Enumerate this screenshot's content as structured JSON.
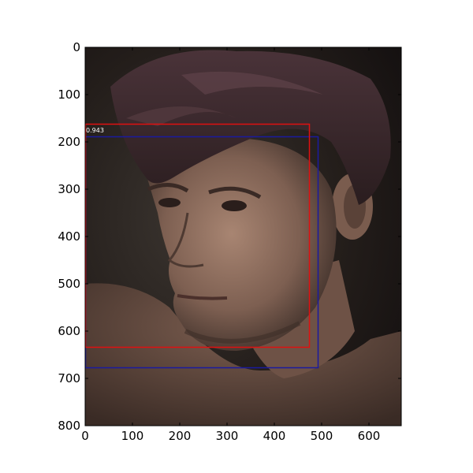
{
  "plot": {
    "x_ticks": [
      "0",
      "100",
      "200",
      "300",
      "400",
      "500",
      "600"
    ],
    "y_ticks": [
      "0",
      "100",
      "200",
      "300",
      "400",
      "500",
      "600",
      "700",
      "800"
    ]
  },
  "image": {
    "description_icon": "portrait-photo",
    "colors": {
      "background_dark": "#1f1a17",
      "hair": "#3a2a2e",
      "skin": "#8b6c5c",
      "skin_light": "#a88572",
      "shadow": "#2a2220"
    }
  },
  "detections": [
    {
      "label": "0.943",
      "color": "#e01010"
    },
    {
      "label": "",
      "color": "#1a1aa0"
    }
  ],
  "colors": {
    "axis": "#000000",
    "red_box": "#e01010",
    "blue_box": "#1a1aa0"
  }
}
